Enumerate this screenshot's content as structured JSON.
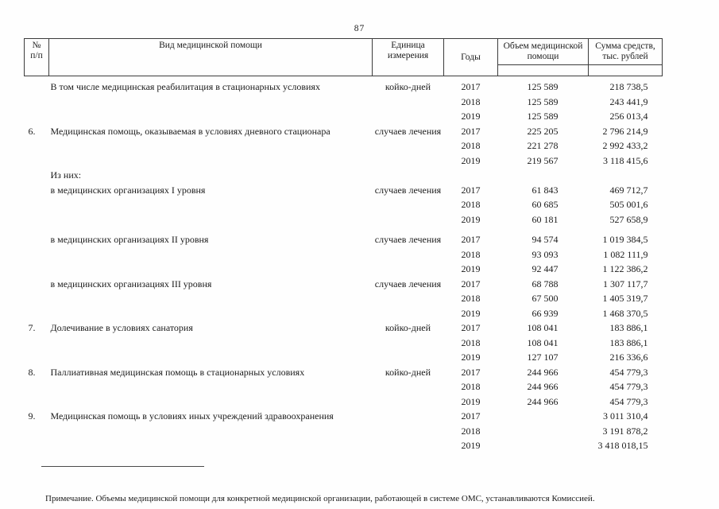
{
  "page": {
    "number": "87"
  },
  "table": {
    "headers": {
      "num": "№\nп/п",
      "kind": "Вид медицинской помощи",
      "unit": "Единица измерения",
      "years": "Годы",
      "volume": "Объем медицинской помощи",
      "sum": "Сумма средств, тыс. рублей"
    },
    "rows": [
      {
        "num": "",
        "desc": "В том числе медицинская реабилитация в стационарных условиях",
        "unit": "койко-дней",
        "year": "2017",
        "volume": "125 589",
        "sum": "218 738,5"
      },
      {
        "num": "",
        "desc": "",
        "unit": "",
        "year": "2018",
        "volume": "125 589",
        "sum": "243 441,9"
      },
      {
        "num": "",
        "desc": "",
        "unit": "",
        "year": "2019",
        "volume": "125 589",
        "sum": "256 013,4"
      },
      {
        "num": "6.",
        "desc": "Медицинская помощь, оказываемая в условиях дневного стационара",
        "unit": "случаев лечения",
        "year": "2017",
        "volume": "225 205",
        "sum": "2 796 214,9"
      },
      {
        "num": "",
        "desc": "",
        "unit": "",
        "year": "2018",
        "volume": "221 278",
        "sum": "2 992 433,2"
      },
      {
        "num": "",
        "desc": "",
        "unit": "",
        "year": "2019",
        "volume": "219 567",
        "sum": "3 118 415,6"
      },
      {
        "num": "",
        "desc": "Из них:",
        "unit": "",
        "year": "",
        "volume": "",
        "sum": ""
      },
      {
        "num": "",
        "desc": "в медицинских организациях I уровня",
        "unit": "случаев лечения",
        "year": "2017",
        "volume": "61 843",
        "sum": "469 712,7"
      },
      {
        "num": "",
        "desc": "",
        "unit": "",
        "year": "2018",
        "volume": "60 685",
        "sum": "505 001,6"
      },
      {
        "num": "",
        "desc": "",
        "unit": "",
        "year": "2019",
        "volume": "60 181",
        "sum": "527 658,9"
      },
      {
        "num": "",
        "desc": "в медицинских организациях II уровня",
        "unit": "случаев лечения",
        "year": "2017",
        "volume": "94 574",
        "sum": "1 019 384,5"
      },
      {
        "num": "",
        "desc": "",
        "unit": "",
        "year": "2018",
        "volume": "93 093",
        "sum": "1 082 111,9"
      },
      {
        "num": "",
        "desc": "",
        "unit": "",
        "year": "2019",
        "volume": "92 447",
        "sum": "1 122 386,2"
      },
      {
        "num": "",
        "desc": "в медицинских организациях III уровня",
        "unit": "случаев лечения",
        "year": "2017",
        "volume": "68 788",
        "sum": "1 307 117,7"
      },
      {
        "num": "",
        "desc": "",
        "unit": "",
        "year": "2018",
        "volume": "67 500",
        "sum": "1 405 319,7"
      },
      {
        "num": "",
        "desc": "",
        "unit": "",
        "year": "2019",
        "volume": "66 939",
        "sum": "1 468 370,5"
      },
      {
        "num": "7.",
        "desc": "Долечивание в условиях санатория",
        "unit": "койко-дней",
        "year": "2017",
        "volume": "108 041",
        "sum": "183 886,1"
      },
      {
        "num": "",
        "desc": "",
        "unit": "",
        "year": "2018",
        "volume": "108 041",
        "sum": "183 886,1"
      },
      {
        "num": "",
        "desc": "",
        "unit": "",
        "year": "2019",
        "volume": "127 107",
        "sum": "216 336,6"
      },
      {
        "num": "8.",
        "desc": "Паллиативная медицинская помощь в стационарных условиях",
        "unit": "койко-дней",
        "year": "2017",
        "volume": "244 966",
        "sum": "454 779,3"
      },
      {
        "num": "",
        "desc": "",
        "unit": "",
        "year": "2018",
        "volume": "244 966",
        "sum": "454 779,3"
      },
      {
        "num": "",
        "desc": "",
        "unit": "",
        "year": "2019",
        "volume": "244 966",
        "sum": "454 779,3"
      },
      {
        "num": "9.",
        "desc": "Медицинская помощь в условиях иных учреждений здравоохранения",
        "unit": "",
        "year": "2017",
        "volume": "",
        "sum": "3 011 310,4"
      },
      {
        "num": "",
        "desc": "",
        "unit": "",
        "year": "2018",
        "volume": "",
        "sum": "3 191 878,2"
      },
      {
        "num": "",
        "desc": "",
        "unit": "",
        "year": "2019",
        "volume": "",
        "sum": "3 418 018,15"
      }
    ]
  },
  "note": "Примечание. Объемы медицинской помощи для конкретной медицинской организации, работающей в системе ОМС, устанавливаются Комиссией."
}
